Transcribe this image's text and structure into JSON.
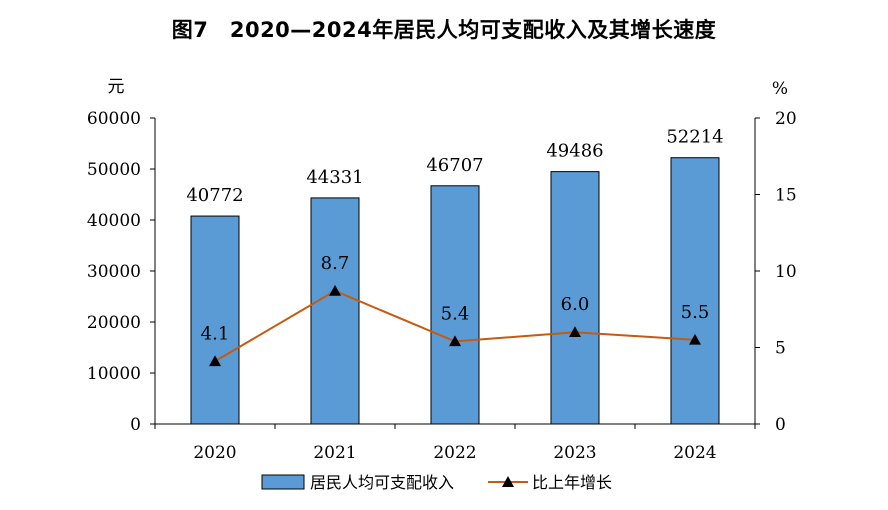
{
  "title": "图7　2020—2024年居民人均可支配收入及其增长速度",
  "chart_data": {
    "type": "bar",
    "categories": [
      "2020",
      "2021",
      "2022",
      "2023",
      "2024"
    ],
    "series": [
      {
        "name": "居民人均可支配收入",
        "type": "bar",
        "axis": "left",
        "values": [
          40772,
          44331,
          46707,
          49486,
          52214
        ],
        "color": "#5B9BD5"
      },
      {
        "name": "比上年增长",
        "type": "line",
        "axis": "right",
        "marker": "triangle",
        "values": [
          4.1,
          8.7,
          5.4,
          6.0,
          5.5
        ],
        "color": "#C55A11"
      }
    ],
    "y_left": {
      "unit": "元",
      "min": 0,
      "max": 60000,
      "ticks": [
        "0",
        "10000",
        "20000",
        "30000",
        "40000",
        "50000",
        "60000"
      ]
    },
    "y_right": {
      "unit": "%",
      "min": 0,
      "max": 20,
      "ticks": [
        "0",
        "5",
        "10",
        "15",
        "20"
      ]
    },
    "bar_labels": [
      "40772",
      "44331",
      "46707",
      "49486",
      "52214"
    ],
    "line_labels": [
      "4.1",
      "8.7",
      "5.4",
      "6.0",
      "5.5"
    ],
    "legend": {
      "position": "bottom",
      "items": [
        "居民人均可支配收入",
        "比上年增长"
      ]
    },
    "grid": false
  }
}
